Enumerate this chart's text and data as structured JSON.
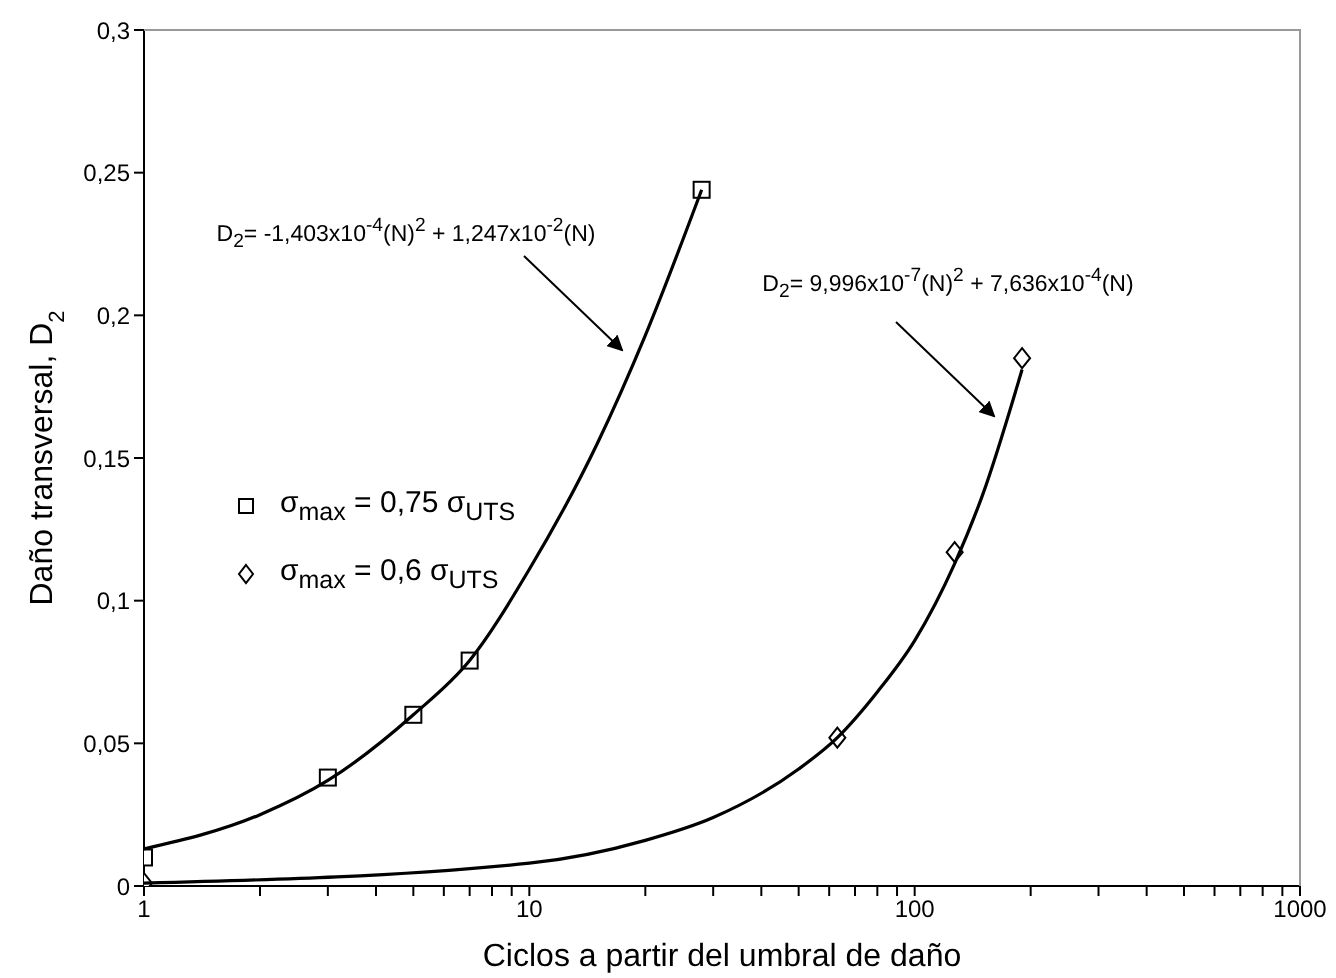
{
  "chart_data": {
    "type": "scatter",
    "xlabel": "Ciclos a partir del umbral de daño",
    "ylabel": "Daño transversal, D$_{2}$",
    "log": "x",
    "xlim": [
      1,
      1000
    ],
    "xticks": [
      1,
      {
        "value": 2,
        "label": null
      },
      {
        "value": 3,
        "label": null
      },
      {
        "value": 4,
        "label": null
      },
      {
        "value": 5,
        "label": null
      },
      {
        "value": 6,
        "label": null
      },
      {
        "value": 7,
        "label": null
      },
      {
        "value": 8,
        "label": null
      },
      {
        "value": 9,
        "label": null
      },
      10,
      {
        "value": 20,
        "label": null
      },
      {
        "value": 30,
        "label": null
      },
      {
        "value": 40,
        "label": null
      },
      {
        "value": 50,
        "label": null
      },
      {
        "value": 60,
        "label": null
      },
      {
        "value": 70,
        "label": null
      },
      {
        "value": 80,
        "label": null
      },
      {
        "value": 90,
        "label": null
      },
      100,
      {
        "value": 200,
        "label": null
      },
      {
        "value": 300,
        "label": null
      },
      {
        "value": 400,
        "label": null
      },
      {
        "value": 500,
        "label": null
      },
      {
        "value": 600,
        "label": null
      },
      {
        "value": 700,
        "label": null
      },
      {
        "value": 800,
        "label": null
      },
      {
        "value": 900,
        "label": null
      },
      1000
    ],
    "ylim": [
      0,
      0.3
    ],
    "yticks": [
      0,
      {
        "value": 0.05,
        "label": "0,05"
      },
      {
        "value": 0.1,
        "label": "0,1"
      },
      {
        "value": 0.15,
        "label": "0,15"
      },
      {
        "value": 0.2,
        "label": "0,2"
      },
      {
        "value": 0.25,
        "label": "0,25"
      },
      {
        "value": 0.3,
        "label": "0,3"
      }
    ],
    "legend": "left",
    "series": [
      {
        "name": "σ$_{max}$ = 0,75 σ$_{UTS}$",
        "marker": "square",
        "color": "#000000",
        "x": [
          1,
          3,
          5,
          7,
          28
        ],
        "values": [
          0.01,
          0.038,
          0.06,
          0.079,
          0.244
        ]
      },
      {
        "name": "σ$_{max}$ = 0,6 σ$_{UTS}$",
        "marker": "diamond",
        "color": "#000000",
        "x": [
          1,
          63,
          127,
          190
        ],
        "values": [
          0.001,
          0.052,
          0.117,
          0.185
        ]
      },
      {
        "type": "line",
        "marker": "none",
        "color": "#000000",
        "x": [
          1,
          2,
          3,
          5,
          7,
          10,
          15,
          20,
          28
        ],
        "values": [
          0.013,
          0.025,
          0.037,
          0.06,
          0.079,
          0.111,
          0.155,
          0.193,
          0.244
        ]
      },
      {
        "type": "line",
        "marker": "none",
        "color": "#000000",
        "x": [
          1,
          10,
          20,
          30,
          50,
          63,
          80,
          100,
          127,
          150,
          190
        ],
        "values": [
          0.001,
          0.008,
          0.016,
          0.024,
          0.041,
          0.052,
          0.068,
          0.086,
          0.113,
          0.137,
          0.181
        ]
      }
    ],
    "annotations": [
      "D$_{2}$= -1,403x10$^{-4}$(N)$^{2}$ + 1,247x10$^{-2}$(N)",
      "D$_{2}$= 9,996x10$^{-7}$(N)$^{2}$ + 7,636x10$^{-4}$(N)"
    ]
  }
}
